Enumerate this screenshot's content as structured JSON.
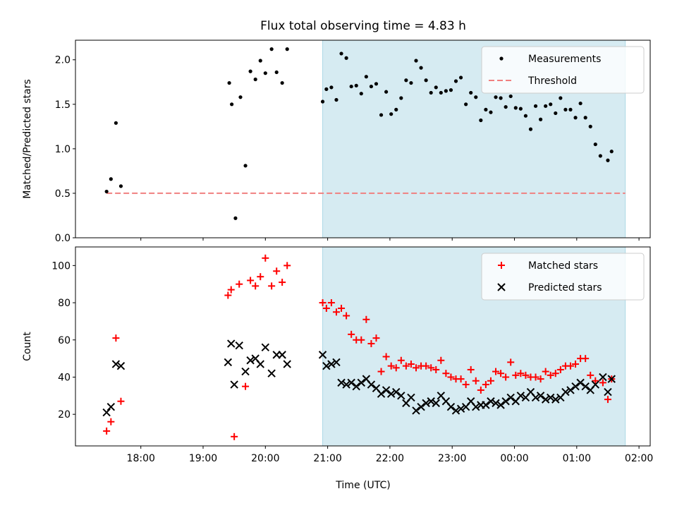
{
  "chart_data": {
    "title": "Flux total observing time = 4.83 h",
    "xlabel": "Time (UTC)",
    "x_units": "hours since 17:00 UTC (xlim 16.95–26.18)",
    "xlim": [
      16.95,
      26.18
    ],
    "x_ticks": [
      {
        "v": 18,
        "label": "18:00"
      },
      {
        "v": 19,
        "label": "19:00"
      },
      {
        "v": 20,
        "label": "20:00"
      },
      {
        "v": 21,
        "label": "21:00"
      },
      {
        "v": 22,
        "label": "22:00"
      },
      {
        "v": 23,
        "label": "23:00"
      },
      {
        "v": 24,
        "label": "00:00"
      },
      {
        "v": 25,
        "label": "01:00"
      },
      {
        "v": 26,
        "label": "02:00"
      }
    ],
    "shaded_region": [
      20.92,
      25.78
    ],
    "shade_color": "#add8e6",
    "panels": [
      {
        "type": "scatter",
        "ylabel": "Matched/Predicted stars",
        "ylim": [
          0,
          2.22
        ],
        "y_ticks": [
          0.0,
          0.5,
          1.0,
          1.5,
          2.0
        ],
        "y_tick_labels": [
          "0.0",
          "0.5",
          "1.0",
          "1.5",
          "2.0"
        ],
        "legend": [
          "Measurements",
          "Threshold"
        ],
        "threshold": {
          "y": 0.5,
          "x": [
            17.45,
            25.78
          ],
          "color": "#f08080"
        },
        "series": [
          {
            "name": "Measurements",
            "marker": "dot",
            "color": "#000000",
            "points": [
              [
                17.45,
                0.52
              ],
              [
                17.52,
                0.66
              ],
              [
                17.6,
                1.29
              ],
              [
                17.68,
                0.58
              ],
              [
                19.42,
                1.74
              ],
              [
                19.46,
                1.5
              ],
              [
                19.52,
                0.22
              ],
              [
                19.6,
                1.58
              ],
              [
                19.68,
                0.81
              ],
              [
                19.76,
                1.87
              ],
              [
                19.84,
                1.78
              ],
              [
                19.92,
                1.99
              ],
              [
                20.0,
                1.85
              ],
              [
                20.1,
                2.12
              ],
              [
                20.18,
                1.86
              ],
              [
                20.27,
                1.74
              ],
              [
                20.35,
                2.12
              ],
              [
                20.92,
                1.53
              ],
              [
                20.98,
                1.67
              ],
              [
                21.06,
                1.69
              ],
              [
                21.14,
                1.55
              ],
              [
                21.22,
                2.07
              ],
              [
                21.3,
                2.02
              ],
              [
                21.38,
                1.7
              ],
              [
                21.46,
                1.71
              ],
              [
                21.54,
                1.62
              ],
              [
                21.62,
                1.81
              ],
              [
                21.7,
                1.7
              ],
              [
                21.78,
                1.73
              ],
              [
                21.86,
                1.38
              ],
              [
                21.94,
                1.64
              ],
              [
                22.02,
                1.39
              ],
              [
                22.1,
                1.44
              ],
              [
                22.18,
                1.57
              ],
              [
                22.26,
                1.77
              ],
              [
                22.34,
                1.74
              ],
              [
                22.42,
                1.99
              ],
              [
                22.5,
                1.91
              ],
              [
                22.58,
                1.77
              ],
              [
                22.66,
                1.63
              ],
              [
                22.74,
                1.69
              ],
              [
                22.82,
                1.63
              ],
              [
                22.9,
                1.65
              ],
              [
                22.98,
                1.66
              ],
              [
                23.06,
                1.76
              ],
              [
                23.14,
                1.8
              ],
              [
                23.22,
                1.5
              ],
              [
                23.3,
                1.63
              ],
              [
                23.38,
                1.58
              ],
              [
                23.46,
                1.32
              ],
              [
                23.54,
                1.44
              ],
              [
                23.62,
                1.41
              ],
              [
                23.7,
                1.58
              ],
              [
                23.78,
                1.57
              ],
              [
                23.86,
                1.47
              ],
              [
                23.94,
                1.59
              ],
              [
                24.02,
                1.46
              ],
              [
                24.1,
                1.45
              ],
              [
                24.18,
                1.37
              ],
              [
                24.26,
                1.22
              ],
              [
                24.34,
                1.48
              ],
              [
                24.42,
                1.33
              ],
              [
                24.5,
                1.48
              ],
              [
                24.58,
                1.5
              ],
              [
                24.66,
                1.4
              ],
              [
                24.74,
                1.57
              ],
              [
                24.82,
                1.44
              ],
              [
                24.9,
                1.44
              ],
              [
                24.98,
                1.35
              ],
              [
                25.06,
                1.51
              ],
              [
                25.14,
                1.35
              ],
              [
                25.22,
                1.25
              ],
              [
                25.3,
                1.05
              ],
              [
                25.38,
                0.92
              ],
              [
                25.5,
                0.87
              ],
              [
                25.56,
                0.97
              ]
            ]
          }
        ]
      },
      {
        "type": "scatter",
        "ylabel": "Count",
        "ylim": [
          3,
          110
        ],
        "y_ticks": [
          20,
          40,
          60,
          80,
          100
        ],
        "y_tick_labels": [
          "20",
          "40",
          "60",
          "80",
          "100"
        ],
        "legend": [
          "Matched stars",
          "Predicted stars"
        ],
        "series": [
          {
            "name": "Matched stars",
            "marker": "plus",
            "color": "#ff0000",
            "points": [
              [
                17.45,
                11
              ],
              [
                17.52,
                16
              ],
              [
                17.6,
                61
              ],
              [
                17.68,
                27
              ],
              [
                19.4,
                84
              ],
              [
                19.45,
                87
              ],
              [
                19.5,
                8
              ],
              [
                19.58,
                90
              ],
              [
                19.68,
                35
              ],
              [
                19.76,
                92
              ],
              [
                19.84,
                89
              ],
              [
                19.92,
                94
              ],
              [
                20.0,
                104
              ],
              [
                20.1,
                89
              ],
              [
                20.18,
                97
              ],
              [
                20.27,
                91
              ],
              [
                20.35,
                100
              ],
              [
                20.92,
                80
              ],
              [
                20.98,
                77
              ],
              [
                21.06,
                80
              ],
              [
                21.14,
                75
              ],
              [
                21.22,
                77
              ],
              [
                21.3,
                73
              ],
              [
                21.38,
                63
              ],
              [
                21.46,
                60
              ],
              [
                21.54,
                60
              ],
              [
                21.62,
                71
              ],
              [
                21.7,
                58
              ],
              [
                21.78,
                61
              ],
              [
                21.86,
                43
              ],
              [
                21.94,
                51
              ],
              [
                22.02,
                46
              ],
              [
                22.1,
                45
              ],
              [
                22.18,
                49
              ],
              [
                22.26,
                46
              ],
              [
                22.34,
                47
              ],
              [
                22.42,
                45
              ],
              [
                22.5,
                46
              ],
              [
                22.58,
                46
              ],
              [
                22.66,
                45
              ],
              [
                22.74,
                44
              ],
              [
                22.82,
                49
              ],
              [
                22.9,
                42
              ],
              [
                22.98,
                40
              ],
              [
                23.06,
                39
              ],
              [
                23.14,
                39
              ],
              [
                23.22,
                36
              ],
              [
                23.3,
                44
              ],
              [
                23.38,
                38
              ],
              [
                23.46,
                33
              ],
              [
                23.54,
                36
              ],
              [
                23.62,
                38
              ],
              [
                23.7,
                43
              ],
              [
                23.78,
                42
              ],
              [
                23.86,
                40
              ],
              [
                23.94,
                48
              ],
              [
                24.02,
                41
              ],
              [
                24.1,
                42
              ],
              [
                24.18,
                41
              ],
              [
                24.26,
                40
              ],
              [
                24.34,
                40
              ],
              [
                24.42,
                39
              ],
              [
                24.5,
                43
              ],
              [
                24.58,
                41
              ],
              [
                24.66,
                42
              ],
              [
                24.74,
                44
              ],
              [
                24.82,
                46
              ],
              [
                24.9,
                46
              ],
              [
                24.98,
                47
              ],
              [
                25.06,
                50
              ],
              [
                25.14,
                50
              ],
              [
                25.22,
                41
              ],
              [
                25.3,
                38
              ],
              [
                25.42,
                37
              ],
              [
                25.5,
                28
              ],
              [
                25.56,
                39
              ]
            ]
          },
          {
            "name": "Predicted stars",
            "marker": "x",
            "color": "#000000",
            "points": [
              [
                17.45,
                21
              ],
              [
                17.52,
                24
              ],
              [
                17.6,
                47
              ],
              [
                17.68,
                46
              ],
              [
                19.4,
                48
              ],
              [
                19.45,
                58
              ],
              [
                19.5,
                36
              ],
              [
                19.58,
                57
              ],
              [
                19.68,
                43
              ],
              [
                19.76,
                49
              ],
              [
                19.84,
                50
              ],
              [
                19.92,
                47
              ],
              [
                20.0,
                56
              ],
              [
                20.1,
                42
              ],
              [
                20.18,
                52
              ],
              [
                20.27,
                52
              ],
              [
                20.35,
                47
              ],
              [
                20.92,
                52
              ],
              [
                20.98,
                46
              ],
              [
                21.06,
                47
              ],
              [
                21.14,
                48
              ],
              [
                21.22,
                37
              ],
              [
                21.3,
                36
              ],
              [
                21.38,
                37
              ],
              [
                21.46,
                35
              ],
              [
                21.54,
                37
              ],
              [
                21.62,
                39
              ],
              [
                21.7,
                36
              ],
              [
                21.78,
                34
              ],
              [
                21.86,
                31
              ],
              [
                21.94,
                33
              ],
              [
                22.02,
                31
              ],
              [
                22.1,
                32
              ],
              [
                22.18,
                30
              ],
              [
                22.26,
                26
              ],
              [
                22.34,
                29
              ],
              [
                22.42,
                22
              ],
              [
                22.5,
                24
              ],
              [
                22.58,
                26
              ],
              [
                22.66,
                27
              ],
              [
                22.74,
                26
              ],
              [
                22.82,
                30
              ],
              [
                22.9,
                27
              ],
              [
                22.98,
                24
              ],
              [
                23.06,
                22
              ],
              [
                23.14,
                23
              ],
              [
                23.22,
                24
              ],
              [
                23.3,
                27
              ],
              [
                23.38,
                24
              ],
              [
                23.46,
                25
              ],
              [
                23.54,
                25
              ],
              [
                23.62,
                27
              ],
              [
                23.7,
                26
              ],
              [
                23.78,
                25
              ],
              [
                23.86,
                27
              ],
              [
                23.94,
                29
              ],
              [
                24.02,
                27
              ],
              [
                24.1,
                30
              ],
              [
                24.18,
                29
              ],
              [
                24.26,
                32
              ],
              [
                24.34,
                29
              ],
              [
                24.42,
                30
              ],
              [
                24.5,
                28
              ],
              [
                24.58,
                29
              ],
              [
                24.66,
                28
              ],
              [
                24.74,
                29
              ],
              [
                24.82,
                32
              ],
              [
                24.9,
                33
              ],
              [
                24.98,
                35
              ],
              [
                25.06,
                37
              ],
              [
                25.14,
                35
              ],
              [
                25.22,
                33
              ],
              [
                25.3,
                36
              ],
              [
                25.42,
                40
              ],
              [
                25.5,
                32
              ],
              [
                25.56,
                39
              ]
            ]
          }
        ]
      }
    ]
  }
}
